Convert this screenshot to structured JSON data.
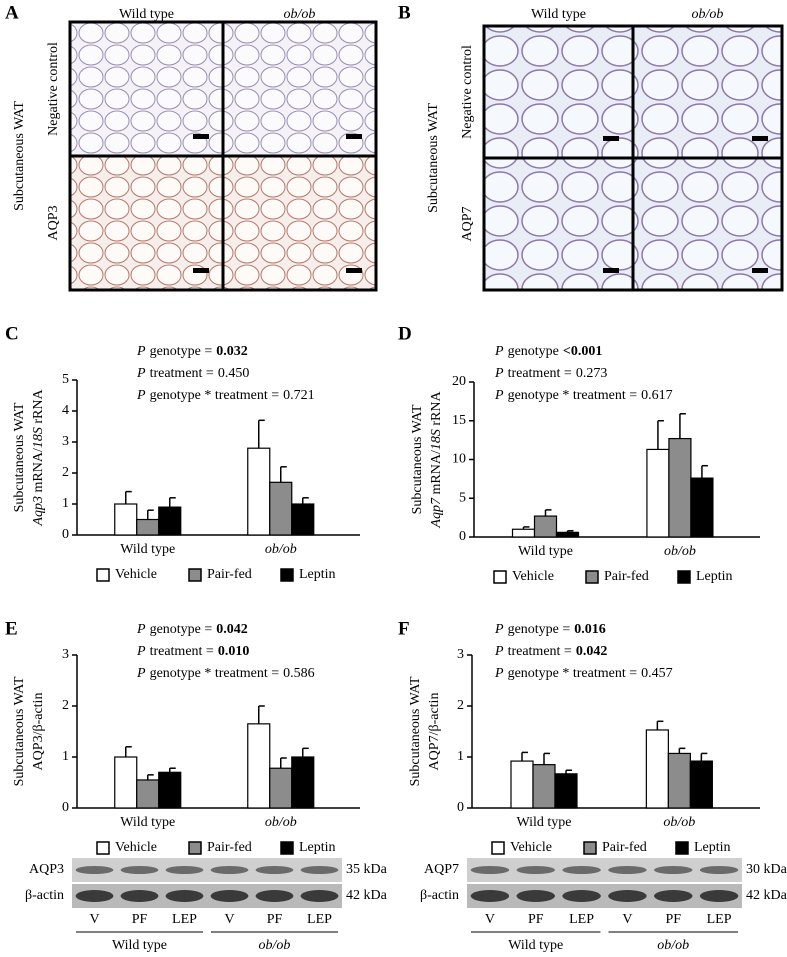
{
  "histology": [
    {
      "letter": "A",
      "columns": [
        "Wild type",
        "ob/ob"
      ],
      "side_label": "Subcutaneous WAT",
      "rows": [
        "Negative control",
        "AQP3"
      ]
    },
    {
      "letter": "B",
      "columns": [
        "Wild type",
        "ob/ob"
      ],
      "side_label": "Subcutaneous WAT",
      "rows": [
        "Negative control",
        "AQP7"
      ]
    }
  ],
  "chart_data": [
    {
      "type": "bar",
      "letter": "C",
      "annotations": [
        {
          "italic": "P",
          "text": "genotype =",
          "value": "0.032",
          "bold": true
        },
        {
          "italic": "P",
          "text": "treatment =",
          "value": "0.450",
          "bold": false
        },
        {
          "italic": "P",
          "text": "genotype * treatment =",
          "value": "0.721",
          "bold": false
        }
      ],
      "ylabel": [
        "Subcutaneous WAT",
        [
          {
            "text": "Aqp3",
            "italic": true
          },
          {
            "text": " mRNA/",
            "italic": false
          },
          {
            "text": "18S",
            "italic": true
          },
          {
            "text": " rRNA",
            "italic": false
          }
        ]
      ],
      "categories": [
        "Wild type",
        "ob/ob"
      ],
      "ylim": [
        0,
        5
      ],
      "yticks": [
        0,
        1,
        2,
        3,
        4,
        5
      ],
      "series": [
        {
          "name": "Vehicle",
          "color": "#ffffff",
          "values": [
            1.0,
            2.8
          ],
          "errors": [
            0.4,
            0.9
          ]
        },
        {
          "name": "Pair-fed",
          "color": "#8c8c8c",
          "values": [
            0.5,
            1.7
          ],
          "errors": [
            0.3,
            0.5
          ]
        },
        {
          "name": "Leptin",
          "color": "#000000",
          "values": [
            0.9,
            1.0
          ],
          "errors": [
            0.3,
            0.2
          ]
        }
      ]
    },
    {
      "type": "bar",
      "letter": "D",
      "annotations": [
        {
          "italic": "P",
          "text": "genotype",
          "value": "<0.001",
          "bold": true
        },
        {
          "italic": "P",
          "text": "treatment =",
          "value": "0.273",
          "bold": false
        },
        {
          "italic": "P",
          "text": "genotype * treatment =",
          "value": "0.617",
          "bold": false
        }
      ],
      "ylabel": [
        "Subcutaneous WAT",
        [
          {
            "text": "Aqp7",
            "italic": true
          },
          {
            "text": " mRNA/",
            "italic": false
          },
          {
            "text": "18S",
            "italic": true
          },
          {
            "text": " rRNA",
            "italic": false
          }
        ]
      ],
      "categories": [
        "Wild type",
        "ob/ob"
      ],
      "ylim": [
        0,
        20
      ],
      "yticks": [
        0,
        5,
        10,
        15,
        20
      ],
      "series": [
        {
          "name": "Vehicle",
          "color": "#ffffff",
          "values": [
            1.0,
            11.3
          ],
          "errors": [
            0.3,
            3.7
          ]
        },
        {
          "name": "Pair-fed",
          "color": "#8c8c8c",
          "values": [
            2.7,
            12.7
          ],
          "errors": [
            0.8,
            3.2
          ]
        },
        {
          "name": "Leptin",
          "color": "#000000",
          "values": [
            0.6,
            7.6
          ],
          "errors": [
            0.2,
            1.6
          ]
        }
      ]
    },
    {
      "type": "bar",
      "letter": "E",
      "annotations": [
        {
          "italic": "P",
          "text": "genotype =",
          "value": "0.042",
          "bold": true
        },
        {
          "italic": "P",
          "text": "treatment =",
          "value": "0.010",
          "bold": true
        },
        {
          "italic": "P",
          "text": "genotype * treatment =",
          "value": "0.586",
          "bold": false
        }
      ],
      "ylabel": [
        "Subcutaneous WAT",
        [
          {
            "text": "AQP3/β-actin",
            "italic": false
          }
        ]
      ],
      "categories": [
        "Wild type",
        "ob/ob"
      ],
      "ylim": [
        0,
        3
      ],
      "yticks": [
        0,
        1,
        2,
        3
      ],
      "series": [
        {
          "name": "Vehicle",
          "color": "#ffffff",
          "values": [
            1.0,
            1.65
          ],
          "errors": [
            0.2,
            0.35
          ]
        },
        {
          "name": "Pair-fed",
          "color": "#8c8c8c",
          "values": [
            0.55,
            0.78
          ],
          "errors": [
            0.1,
            0.2
          ]
        },
        {
          "name": "Leptin",
          "color": "#000000",
          "values": [
            0.7,
            1.0
          ],
          "errors": [
            0.08,
            0.17
          ]
        }
      ],
      "blot": {
        "rows": [
          {
            "name": "AQP3",
            "size": "35 kDa"
          },
          {
            "name": "β-actin",
            "size": "42 kDa"
          }
        ],
        "lanes": [
          "V",
          "PF",
          "LEP",
          "V",
          "PF",
          "LEP"
        ],
        "groups": [
          "Wild type",
          "ob/ob"
        ]
      }
    },
    {
      "type": "bar",
      "letter": "F",
      "annotations": [
        {
          "italic": "P",
          "text": "genotype =",
          "value": "0.016",
          "bold": true
        },
        {
          "italic": "P",
          "text": "treatment =",
          "value": "0.042",
          "bold": true
        },
        {
          "italic": "P",
          "text": "genotype * treatment =",
          "value": "0.457",
          "bold": false
        }
      ],
      "ylabel": [
        "Subcutaneous WAT",
        [
          {
            "text": "AQP7/β-actin",
            "italic": false
          }
        ]
      ],
      "categories": [
        "Wild type",
        "ob/ob"
      ],
      "ylim": [
        0,
        3
      ],
      "yticks": [
        0,
        1,
        2,
        3
      ],
      "series": [
        {
          "name": "Vehicle",
          "color": "#ffffff",
          "values": [
            0.92,
            1.53
          ],
          "errors": [
            0.17,
            0.17
          ]
        },
        {
          "name": "Pair-fed",
          "color": "#8c8c8c",
          "values": [
            0.85,
            1.07
          ],
          "errors": [
            0.22,
            0.1
          ]
        },
        {
          "name": "Leptin",
          "color": "#000000",
          "values": [
            0.67,
            0.92
          ],
          "errors": [
            0.07,
            0.15
          ]
        }
      ],
      "blot": {
        "rows": [
          {
            "name": "AQP7",
            "size": "30 kDa"
          },
          {
            "name": "β-actin",
            "size": "42 kDa"
          }
        ],
        "lanes": [
          "V",
          "PF",
          "LEP",
          "V",
          "PF",
          "LEP"
        ],
        "groups": [
          "Wild type",
          "ob/ob"
        ]
      }
    }
  ]
}
